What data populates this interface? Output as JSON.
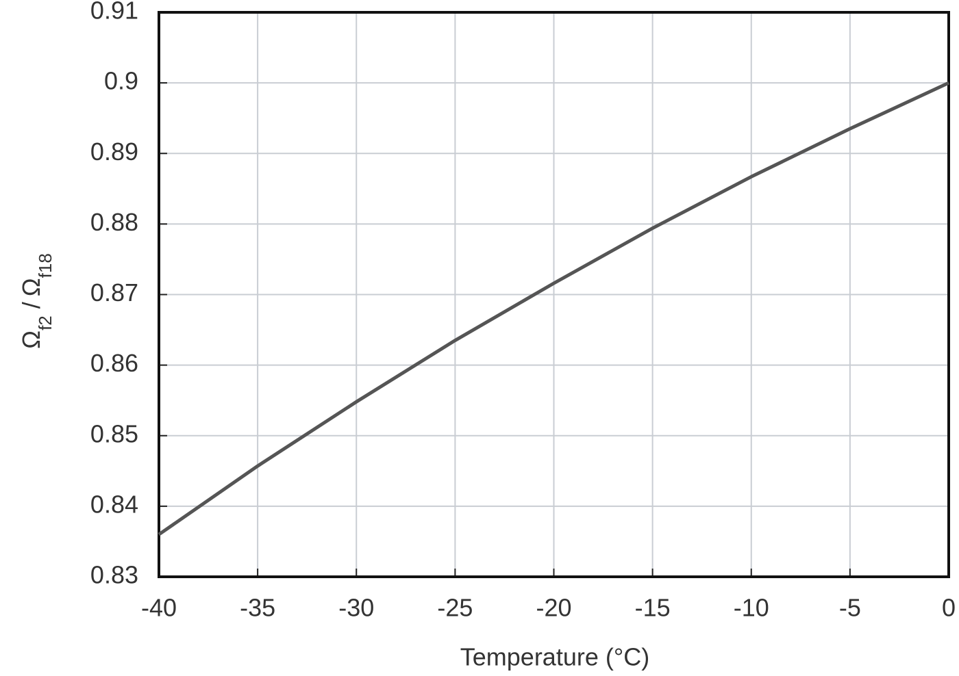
{
  "chart_data": {
    "type": "line",
    "xlabel": "Temperature (°C)",
    "ylabel": {
      "numerator": "Ω",
      "numerator_sub": "f2",
      "separator": "/",
      "denominator": "Ω",
      "denominator_sub": "f18"
    },
    "x": [
      -40,
      -35,
      -30,
      -25,
      -20,
      -15,
      -10,
      -5,
      0
    ],
    "series": [
      {
        "color": "#555555",
        "values": [
          0.836,
          0.8457,
          0.8548,
          0.8635,
          0.8716,
          0.8794,
          0.8867,
          0.8935,
          0.9
        ]
      }
    ],
    "xlim": [
      -40,
      0
    ],
    "xticks": [
      -40,
      -35,
      -30,
      -25,
      -20,
      -15,
      -10,
      -5,
      0
    ],
    "ylim": [
      0.83,
      0.91
    ],
    "yticks": [
      0.83,
      0.84,
      0.85,
      0.86,
      0.87,
      0.88,
      0.89,
      0.9,
      0.91
    ],
    "grid": true
  }
}
